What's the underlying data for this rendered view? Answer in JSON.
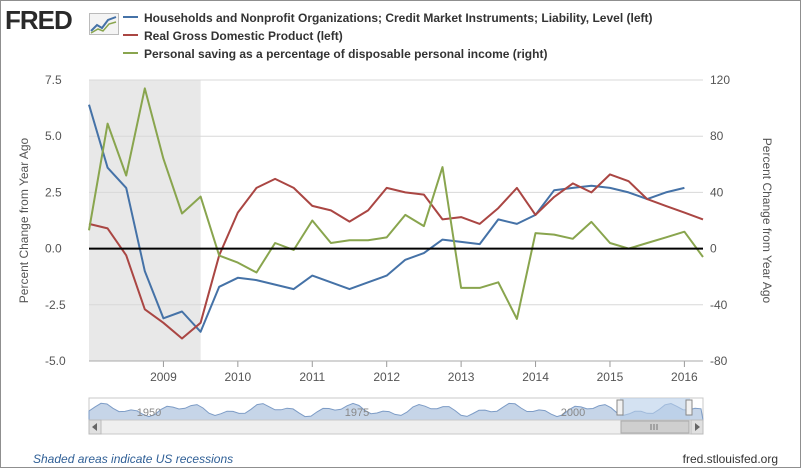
{
  "logo": {
    "text": "FRED"
  },
  "footer": {
    "note": "Shaded areas indicate US recessions",
    "source": "fred.stlouisfed.org"
  },
  "navigator": {
    "labels": [
      "1950",
      "1975",
      "2000"
    ]
  },
  "colors": {
    "blue": "#4572a7",
    "red": "#aa4643",
    "green": "#89a54e",
    "recession": "#e8e8e8",
    "grid": "#d8d8d8"
  },
  "chart_data": {
    "type": "line",
    "title": "",
    "xlabel": "",
    "ylabel_left": "Percent Change from Year Ago",
    "ylabel_right": "Percent Change from Year Ago",
    "ylim_left": [
      -5.0,
      7.5
    ],
    "ylim_right": [
      -80,
      120
    ],
    "yticks_left": [
      "7.5",
      "5.0",
      "2.5",
      "0.0",
      "-2.5",
      "-5.0"
    ],
    "yticks_right": [
      "120",
      "80",
      "40",
      "0",
      "-40",
      "-80"
    ],
    "xlim": [
      2008.0,
      2016.25
    ],
    "xticks": [
      "2009",
      "2010",
      "2011",
      "2012",
      "2013",
      "2014",
      "2015",
      "2016"
    ],
    "recession": [
      2008.0,
      2009.5
    ],
    "grid": true,
    "legend_position": "top",
    "series": [
      {
        "name": "Households and Nonprofit Organizations; Credit Market Instruments; Liability, Level (left)",
        "axis": "left",
        "x": [
          2008.0,
          2008.25,
          2008.5,
          2008.75,
          2009.0,
          2009.25,
          2009.5,
          2009.75,
          2010.0,
          2010.25,
          2010.5,
          2010.75,
          2011.0,
          2011.25,
          2011.5,
          2011.75,
          2012.0,
          2012.25,
          2012.5,
          2012.75,
          2013.0,
          2013.25,
          2013.5,
          2013.75,
          2014.0,
          2014.25,
          2014.5,
          2014.75,
          2015.0,
          2015.25,
          2015.5,
          2015.75,
          2016.0
        ],
        "values": [
          6.4,
          3.6,
          2.7,
          -1.0,
          -3.1,
          -2.8,
          -3.7,
          -1.7,
          -1.3,
          -1.4,
          -1.6,
          -1.8,
          -1.2,
          -1.5,
          -1.8,
          -1.5,
          -1.2,
          -0.5,
          -0.2,
          0.4,
          0.3,
          0.2,
          1.3,
          1.1,
          1.5,
          2.6,
          2.7,
          2.8,
          2.7,
          2.5,
          2.2,
          2.5,
          2.7
        ]
      },
      {
        "name": "Real Gross Domestic Product (left)",
        "axis": "left",
        "x": [
          2008.0,
          2008.25,
          2008.5,
          2008.75,
          2009.0,
          2009.25,
          2009.5,
          2009.75,
          2010.0,
          2010.25,
          2010.5,
          2010.75,
          2011.0,
          2011.25,
          2011.5,
          2011.75,
          2012.0,
          2012.25,
          2012.5,
          2012.75,
          2013.0,
          2013.25,
          2013.5,
          2013.75,
          2014.0,
          2014.25,
          2014.5,
          2014.75,
          2015.0,
          2015.25,
          2015.5,
          2015.75,
          2016.0,
          2016.25
        ],
        "values": [
          1.1,
          0.9,
          -0.3,
          -2.7,
          -3.3,
          -4.0,
          -3.3,
          -0.3,
          1.6,
          2.7,
          3.1,
          2.7,
          1.9,
          1.7,
          1.2,
          1.7,
          2.7,
          2.5,
          2.4,
          1.3,
          1.4,
          1.1,
          1.8,
          2.7,
          1.5,
          2.3,
          2.9,
          2.5,
          3.3,
          3.0,
          2.2,
          1.9,
          1.6,
          1.3
        ]
      },
      {
        "name": "Personal saving as a percentage of disposable personal income (right)",
        "axis": "right",
        "x": [
          2008.0,
          2008.25,
          2008.5,
          2008.75,
          2009.0,
          2009.25,
          2009.5,
          2009.75,
          2010.0,
          2010.25,
          2010.5,
          2010.75,
          2011.0,
          2011.25,
          2011.5,
          2011.75,
          2012.0,
          2012.25,
          2012.5,
          2012.75,
          2013.0,
          2013.25,
          2013.5,
          2013.75,
          2014.0,
          2014.25,
          2014.5,
          2014.75,
          2015.0,
          2015.25,
          2015.5,
          2015.75,
          2016.0,
          2016.25
        ],
        "values": [
          13,
          89,
          52,
          114,
          64,
          25,
          37,
          -5,
          -10,
          -17,
          4,
          -1,
          20,
          4,
          6,
          6,
          8,
          24,
          16,
          58,
          -28,
          -28,
          -24,
          -50,
          11,
          10,
          7,
          19,
          4,
          0,
          4,
          8,
          12,
          -6
        ]
      }
    ]
  }
}
